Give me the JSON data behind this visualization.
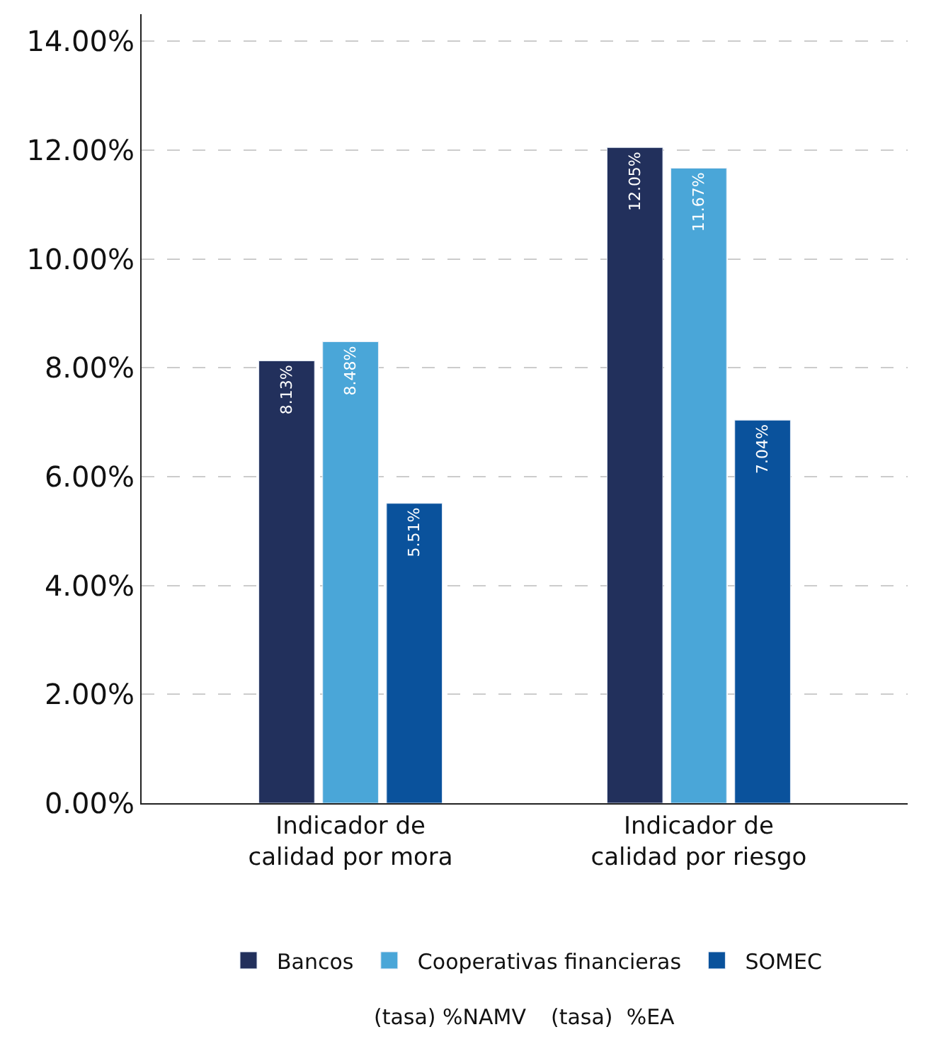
{
  "chart_data": {
    "type": "bar",
    "categories": [
      "Indicador de\ncalidad por mora",
      "Indicador de\ncalidad por riesgo"
    ],
    "series": [
      {
        "name": "Bancos",
        "color": "#22305c",
        "values": [
          8.13,
          12.05
        ],
        "value_labels": [
          "8.13%",
          "12.05%"
        ]
      },
      {
        "name": "Cooperativas financieras",
        "color": "#4aa6d8",
        "values": [
          8.48,
          11.67
        ],
        "value_labels": [
          "8.48%",
          "11.67%"
        ]
      },
      {
        "name": "SOMEC",
        "color": "#0a529c",
        "values": [
          5.51,
          7.04
        ],
        "value_labels": [
          "5.51%",
          "7.04%"
        ]
      }
    ],
    "ylim": [
      0,
      14.5
    ],
    "yticks": [
      {
        "value": 0,
        "label": "0.00%"
      },
      {
        "value": 2,
        "label": "2.00%"
      },
      {
        "value": 4,
        "label": "4.00%"
      },
      {
        "value": 6,
        "label": "6.00%"
      },
      {
        "value": 8,
        "label": "8.00%"
      },
      {
        "value": 10,
        "label": "10.00%"
      },
      {
        "value": 12,
        "label": "12.00%"
      },
      {
        "value": 14,
        "label": "14.00%"
      }
    ],
    "grid": "y",
    "legend": "bottom",
    "annotations": [
      "(tasa) %NAMV",
      "(tasa)  %EA"
    ]
  }
}
